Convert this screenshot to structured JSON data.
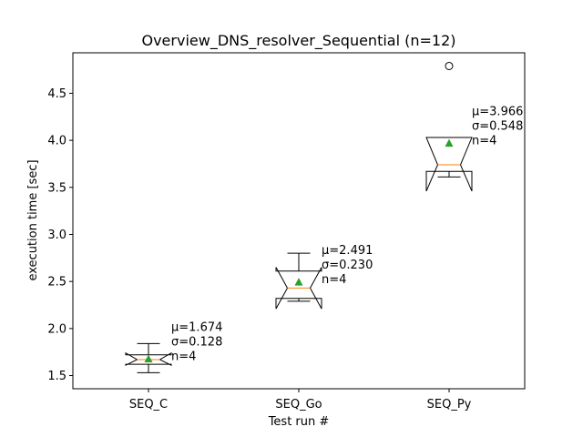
{
  "chart_data": {
    "type": "boxplot",
    "title": "Overview_DNS_resolver_Sequential (n=12)",
    "xlabel": "Test run #",
    "ylabel": "execution time [sec]",
    "ylim": [
      1.36,
      4.93
    ],
    "yticks": [
      1.5,
      2.0,
      2.5,
      3.0,
      3.5,
      4.0,
      4.5
    ],
    "ytick_labels": [
      "1.5",
      "2.0",
      "2.5",
      "3.0",
      "3.5",
      "4.0",
      "4.5"
    ],
    "notched": true,
    "show_means": true,
    "grid": false,
    "colors": {
      "box": "#000000",
      "median": "#ff7f0e",
      "mean": "#2ca02c",
      "flier": "#000000"
    },
    "categories": [
      "SEQ_C",
      "SEQ_Go",
      "SEQ_Py"
    ],
    "boxes": [
      {
        "label": "SEQ_C",
        "whisker_low": 1.53,
        "q1": 1.62,
        "median": 1.67,
        "q3": 1.72,
        "whisker_high": 1.84,
        "notch_low": 1.61,
        "notch_high": 1.74,
        "mean": 1.674,
        "fliers": [],
        "annotation": [
          "μ=1.674",
          "σ=0.128",
          "n=4"
        ]
      },
      {
        "label": "SEQ_Go",
        "whisker_low": 2.29,
        "q1": 2.32,
        "median": 2.43,
        "q3": 2.61,
        "whisker_high": 2.8,
        "notch_low": 2.21,
        "notch_high": 2.65,
        "mean": 2.491,
        "fliers": [],
        "annotation": [
          "μ=2.491",
          "σ=0.230",
          "n=4"
        ]
      },
      {
        "label": "SEQ_Py",
        "whisker_low": 3.61,
        "q1": 3.67,
        "median": 3.74,
        "q3": 4.03,
        "whisker_high": 4.03,
        "notch_low": 3.46,
        "notch_high": 4.03,
        "mean": 3.966,
        "fliers": [
          4.79
        ],
        "annotation": [
          "μ=3.966",
          "σ=0.548",
          "n=4"
        ]
      }
    ]
  }
}
